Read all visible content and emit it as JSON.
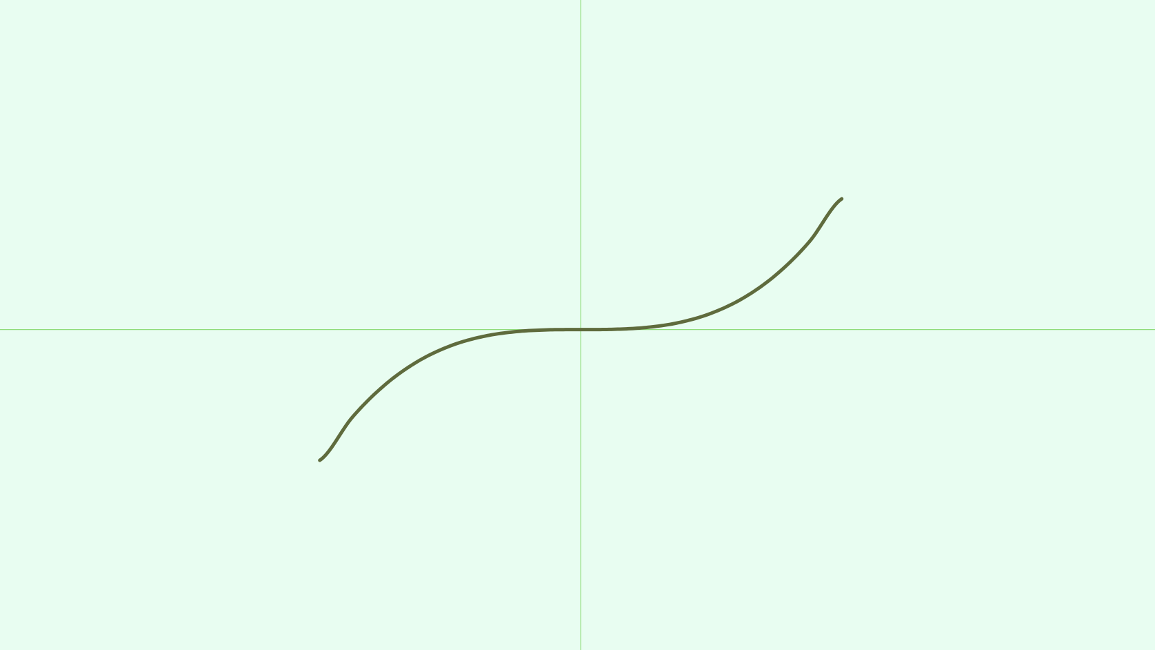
{
  "chart_data": {
    "type": "line",
    "title": "",
    "xlabel": "",
    "ylabel": "",
    "grid": false,
    "legend": "none",
    "xlim": [
      -4.45,
      4.4
    ],
    "ylim": [
      -2.45,
      2.52
    ],
    "axes_crossing": [
      0,
      0
    ],
    "series": [
      {
        "function": "y = x^3 / 8",
        "x": [
          -2.0,
          -1.75,
          -1.5,
          -1.25,
          -1.0,
          -0.75,
          -0.5,
          -0.25,
          0.0,
          0.25,
          0.5,
          0.75,
          1.0,
          1.25,
          1.5,
          1.75,
          2.0
        ],
        "y": [
          -1.0,
          -0.67,
          -0.422,
          -0.244,
          -0.125,
          -0.053,
          -0.016,
          -0.002,
          0.0,
          0.002,
          0.016,
          0.053,
          0.125,
          0.244,
          0.422,
          0.67,
          1.0
        ],
        "color": "#5f6b3d"
      }
    ]
  },
  "colors": {
    "background": "#e8fdf1",
    "axis": "#8fdc7a",
    "curve": "#5f6b3d"
  }
}
